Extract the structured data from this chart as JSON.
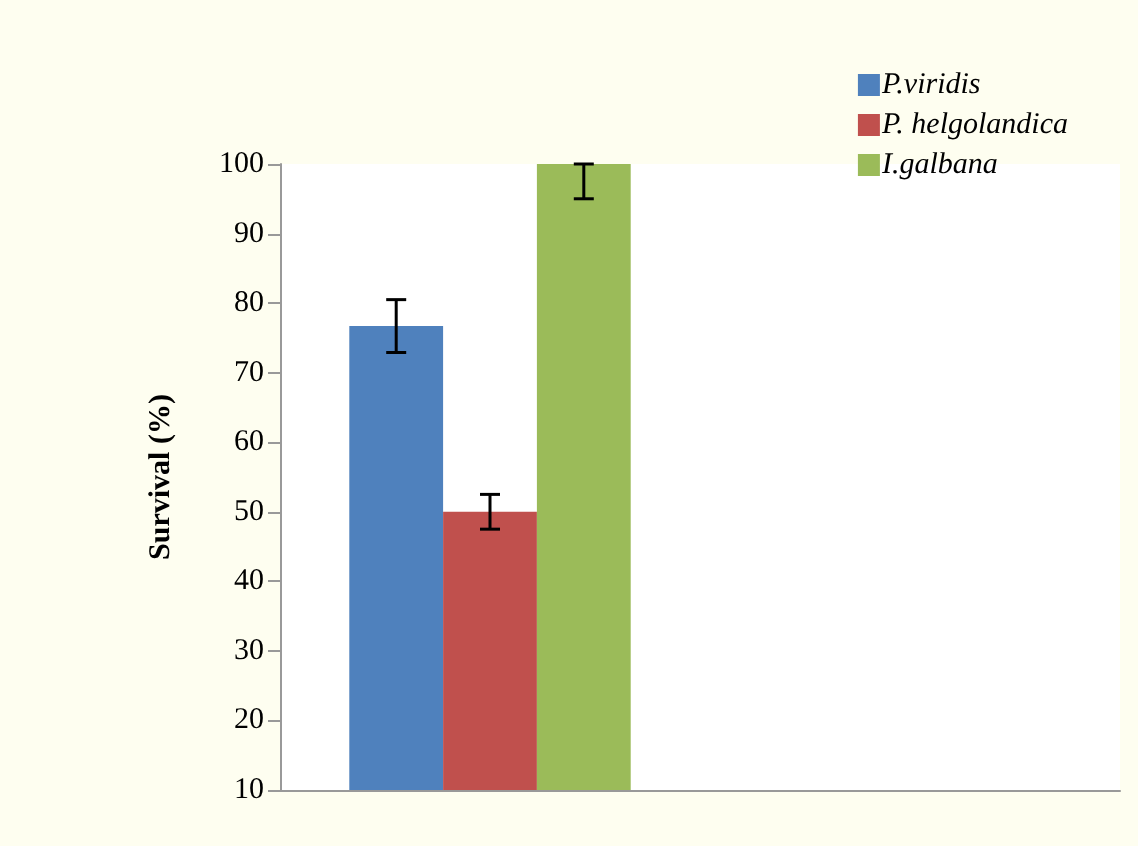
{
  "chart_data": {
    "type": "bar",
    "ylabel": "Survival (%)",
    "categories": [
      null,
      null
    ],
    "series": [
      {
        "name": "P.viridis",
        "color": "#4f81bd",
        "values": [
          76.7,
          null
        ],
        "errors": [
          3.8,
          null
        ]
      },
      {
        "name": "P. helgolandica",
        "color": "#c0504d",
        "values": [
          50,
          null
        ],
        "errors": [
          2.5,
          null
        ]
      },
      {
        "name": "I.galbana",
        "color": "#9bbb59",
        "values": [
          100,
          null
        ],
        "errors": [
          [
            95,
            100
          ],
          null
        ]
      }
    ],
    "ylim": [
      10,
      100
    ],
    "yticks": [
      10,
      20,
      30,
      40,
      50,
      60,
      70,
      80,
      90,
      100
    ],
    "grid": false,
    "legend": "top right"
  }
}
